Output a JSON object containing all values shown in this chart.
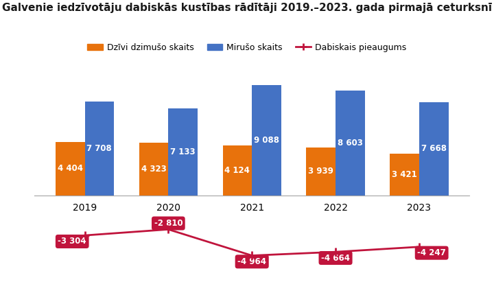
{
  "title": "Galvenie iedzīvotāju dabiskās kustības rādītāji 2019.–2023. gada pirmajā ceturksnī",
  "years": [
    2019,
    2020,
    2021,
    2022,
    2023
  ],
  "born": [
    4404,
    4323,
    4124,
    3939,
    3421
  ],
  "died": [
    7708,
    7133,
    9088,
    8603,
    7668
  ],
  "natural_growth": [
    -3304,
    -2810,
    -4964,
    -4664,
    -4247
  ],
  "bar_color_born": "#E8720C",
  "bar_color_died": "#4472C4",
  "line_color": "#C0143C",
  "label_born": "Dzīvi dzimušo skaits",
  "label_died": "Mirušo skaits",
  "label_growth": "Dabiskais pieaugums",
  "background_color": "#FFFFFF",
  "bar_width": 0.35,
  "title_fontsize": 11,
  "tick_fontsize": 10,
  "label_fontsize": 9,
  "ylim_min": -7000,
  "ylim_max": 10500
}
